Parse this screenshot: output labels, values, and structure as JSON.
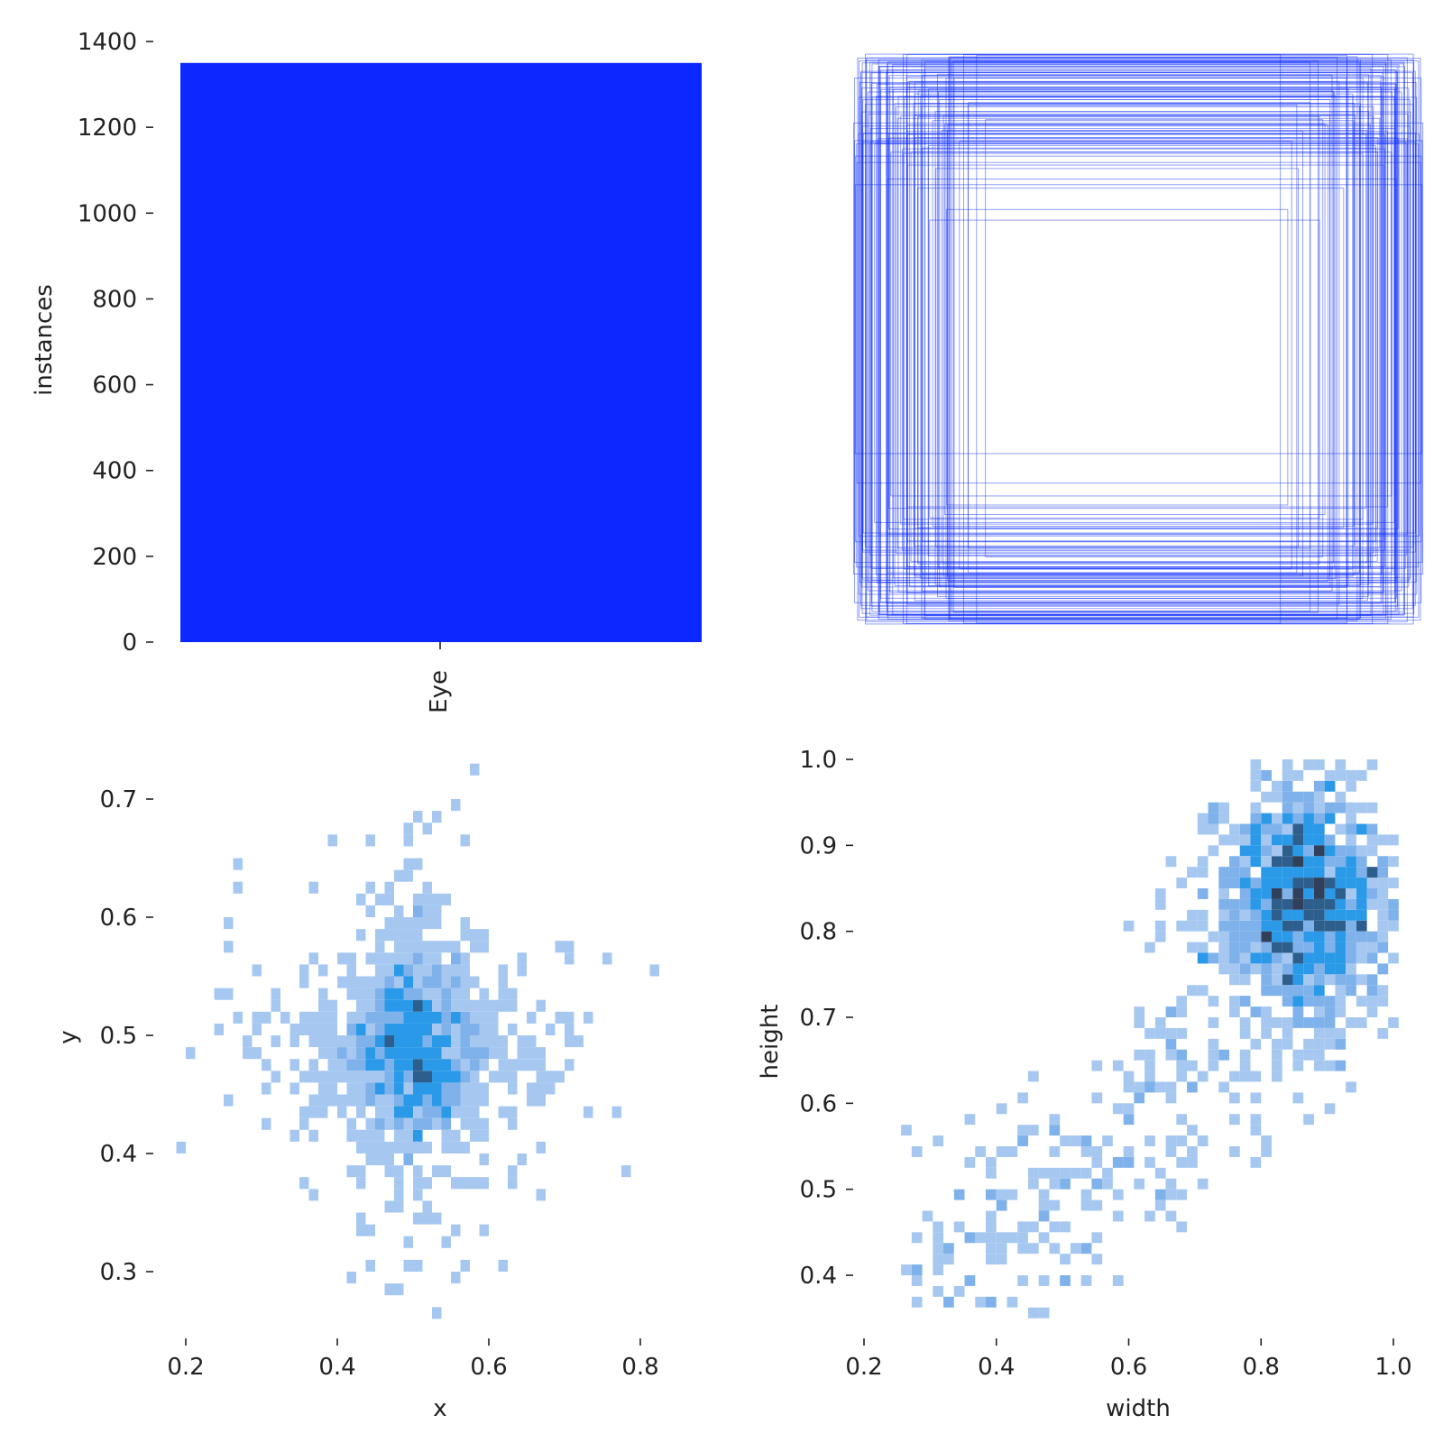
{
  "colors": {
    "bar": "#0a28ff",
    "box_stroke": "#0a28ff",
    "hist_light": "#a6c8f0",
    "hist_mid": "#7fb2ea",
    "hist_bright": "#2a9ae8",
    "hist_dark": "#2e5f8c",
    "hist_darkest": "#31405a"
  },
  "chart_data": [
    {
      "type": "bar",
      "categories": [
        "Eye"
      ],
      "values": [
        1350
      ],
      "xlabel": "",
      "ylabel": "instances",
      "ylim": [
        0,
        1400
      ],
      "yticks": [
        "0",
        "200",
        "400",
        "600",
        "800",
        "1000",
        "1200",
        "1400"
      ]
    },
    {
      "type": "boxes",
      "description_note": "",
      "box_count_estimate": 120
    },
    {
      "type": "heatmap",
      "xlabel": "x",
      "ylabel": "y",
      "xlim": [
        0.19,
        0.88
      ],
      "ylim": [
        0.26,
        0.73
      ],
      "xticks": [
        "0.2",
        "0.4",
        "0.6",
        "0.8"
      ],
      "yticks": [
        "0.3",
        "0.4",
        "0.5",
        "0.6",
        "0.7"
      ],
      "center": [
        0.5,
        0.49
      ],
      "spread": [
        0.07,
        0.06
      ]
    },
    {
      "type": "heatmap",
      "xlabel": "width",
      "ylabel": "height",
      "xlim": [
        0.21,
        1.0
      ],
      "ylim": [
        0.36,
        1.0
      ],
      "xticks": [
        "0.2",
        "0.4",
        "0.6",
        "0.8",
        "1.0"
      ],
      "yticks": [
        "0.4",
        "0.5",
        "0.6",
        "0.7",
        "0.8",
        "0.9",
        "1.0"
      ],
      "center": [
        0.86,
        0.84
      ],
      "correlation": 0.7
    }
  ]
}
